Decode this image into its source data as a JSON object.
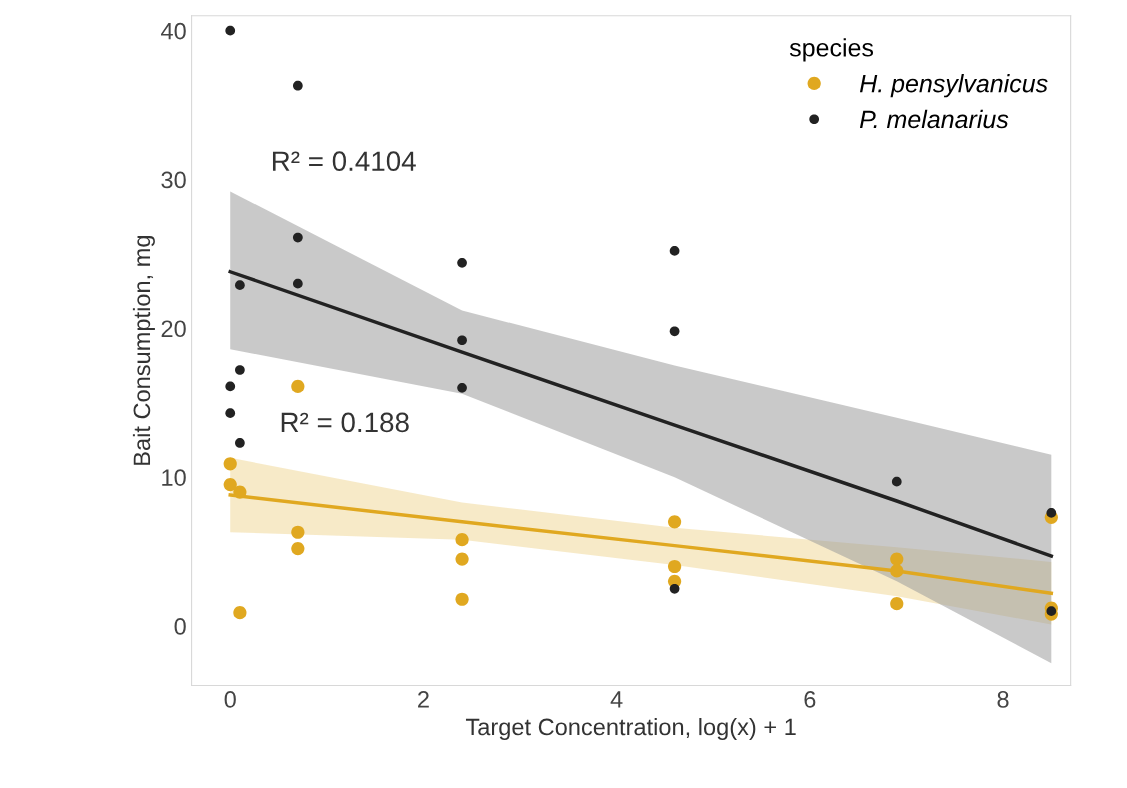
{
  "chart_data": {
    "type": "scatter",
    "xlabel": "Target Concentration, log(x) + 1",
    "ylabel": "Bait Consumption, mg",
    "legend_title": "species",
    "legend": "top right",
    "grid": false,
    "marker": "circle",
    "xlim": [
      -0.4,
      8.7
    ],
    "xticks": [
      0,
      2,
      4,
      6,
      8
    ],
    "ylim": [
      -4,
      41
    ],
    "yticks": [
      0,
      10,
      20,
      30,
      40
    ],
    "series": [
      {
        "name": "H. pensylvanicus",
        "color": "#e0a820",
        "x": [
          0,
          0,
          0.1,
          0.7,
          0.7,
          0.7,
          0.1,
          2.4,
          2.4,
          2.4,
          4.6,
          4.6,
          4.6,
          6.9,
          6.9,
          6.9,
          8.5,
          8.5,
          8.5
        ],
        "values": [
          10.9,
          9.5,
          9,
          16.1,
          6.3,
          5.2,
          0.9,
          5.8,
          4.5,
          1.8,
          7,
          4,
          3,
          4.5,
          3.7,
          1.5,
          7.3,
          1.2,
          0.8
        ]
      },
      {
        "name": "P. melanarius",
        "color": "#222222",
        "x": [
          0,
          0.7,
          0.7,
          0.7,
          0.1,
          0.1,
          0,
          0,
          0.1,
          2.4,
          2.4,
          2.4,
          4.6,
          4.6,
          4.6,
          6.9,
          8.5,
          8.5
        ],
        "values": [
          40,
          36.3,
          26.1,
          23,
          22.9,
          17.2,
          16.1,
          14.3,
          12.3,
          24.4,
          19.2,
          16,
          25.2,
          19.8,
          2.5,
          9.7,
          7.6,
          1
        ]
      },
      {
        "color": "#e0a820",
        "type": "line",
        "marker": "none",
        "x": [
          0,
          2.4,
          4.6,
          6.9,
          8.5
        ],
        "values": [
          8.8,
          7,
          5.4,
          3.7,
          2.2
        ],
        "lower": [
          6.3,
          5.8,
          4.1,
          2,
          0.1
        ],
        "upper": [
          11.3,
          8.3,
          6.6,
          5.3,
          4.3
        ]
      },
      {
        "color": "#222222",
        "type": "line",
        "marker": "none",
        "x": [
          0,
          2.4,
          4.6,
          6.9,
          8.5
        ],
        "values": [
          23.8,
          18.4,
          13.5,
          8.4,
          4.7
        ],
        "lower": [
          18.6,
          15.6,
          10,
          3,
          -2.5
        ],
        "upper": [
          29.2,
          21.2,
          17.5,
          14,
          11.5
        ]
      }
    ],
    "annotations": [
      "R² = 0.4104",
      "R² = 0.188"
    ]
  }
}
